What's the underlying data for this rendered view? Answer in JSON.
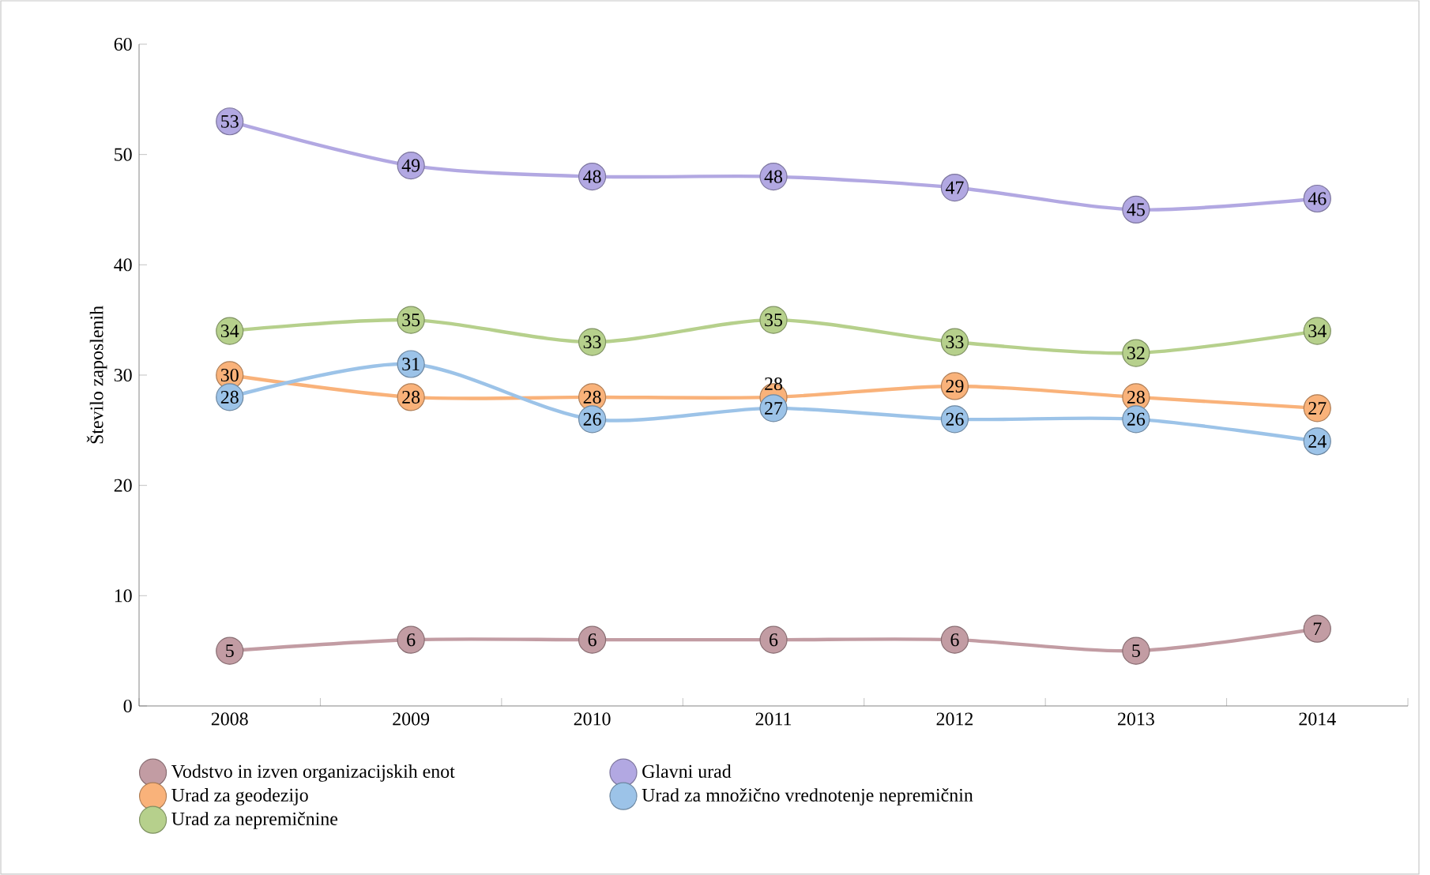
{
  "chart_data": {
    "type": "line",
    "ylabel": "Število zaposlenih",
    "categories": [
      "2008",
      "2009",
      "2010",
      "2011",
      "2012",
      "2013",
      "2014"
    ],
    "series": [
      {
        "name": "Vodstvo in izven organizacijskih enot",
        "color": "#c29ca3",
        "values": [
          5,
          6,
          6,
          6,
          6,
          5,
          7
        ]
      },
      {
        "name": "Glavni urad",
        "color": "#b2a8e2",
        "values": [
          53,
          49,
          48,
          48,
          47,
          45,
          46
        ]
      },
      {
        "name": "Urad za geodezijo",
        "color": "#f9b27a",
        "values": [
          30,
          28,
          28,
          28,
          29,
          28,
          27
        ]
      },
      {
        "name": "Urad za množično vrednotenje nepremičnin",
        "color": "#9cc3e8",
        "values": [
          28,
          31,
          26,
          27,
          26,
          26,
          24
        ]
      },
      {
        "name": "Urad za nepremičnine",
        "color": "#b6d08c",
        "values": [
          34,
          35,
          33,
          35,
          33,
          32,
          34
        ]
      }
    ],
    "ylim": [
      0,
      60
    ],
    "yticks": [
      0,
      10,
      20,
      30,
      40,
      50,
      60
    ],
    "grid": false,
    "legend": "bottom",
    "marker": "circle",
    "line_style": "solid",
    "data_labels": true
  }
}
